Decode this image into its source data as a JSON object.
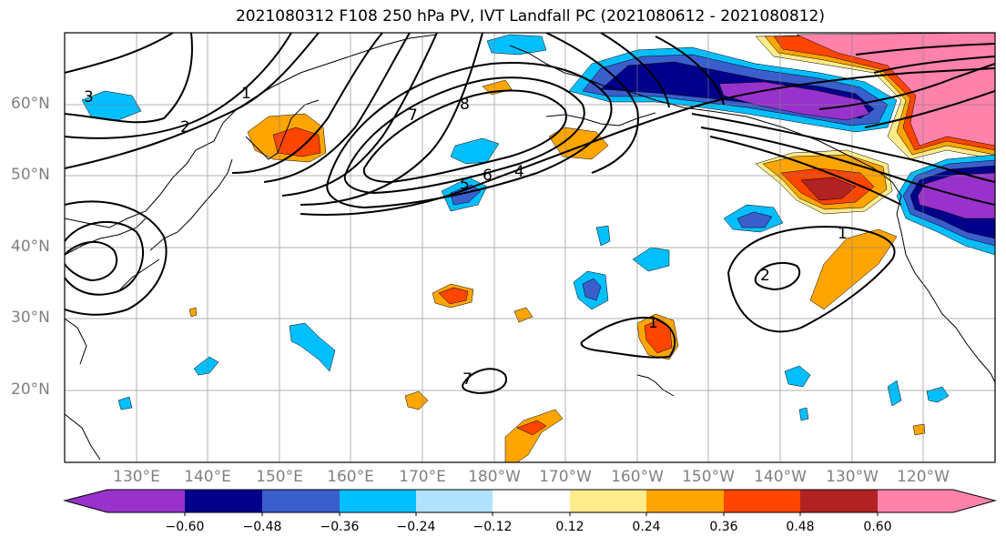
{
  "title": "2021080312 F108 250 hPa PV, IVT Landfall PC (2021080612 - 2021080812)",
  "lat_labels": [
    "60°N",
    "50°N",
    "40°N",
    "30°N",
    "20°N"
  ],
  "lon_labels": [
    "130°E",
    "140°E",
    "150°E",
    "160°E",
    "170°E",
    "180°W",
    "170°W",
    "160°W",
    "150°W",
    "140°W",
    "130°W",
    "120°W"
  ],
  "colorbar": {
    "ticks": [
      "−0.60",
      "−0.48",
      "−0.36",
      "−0.24",
      "−0.12",
      "0.12",
      "0.24",
      "0.36",
      "0.48",
      "0.60"
    ],
    "colors": [
      "#9932CC",
      "#00008B",
      "#3A5FCD",
      "#00BFFF",
      "#B0E2FF",
      "#FFFFFF",
      "#FFEC8B",
      "#FFA500",
      "#FF4500",
      "#B22222",
      "#FF82AB"
    ]
  },
  "contour_labels": [
    "1",
    "2",
    "3",
    "4",
    "5",
    "6",
    "7",
    "8",
    "1",
    "2",
    "7",
    "1"
  ]
}
